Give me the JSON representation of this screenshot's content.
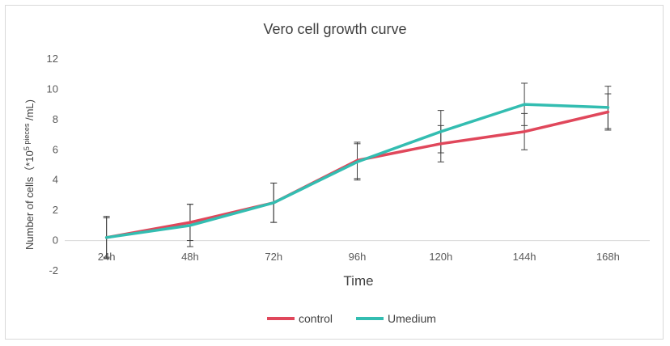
{
  "chart_data": {
    "type": "line",
    "title": "Vero cell growth curve",
    "xlabel": "Time",
    "ylabel_prefix": "Number of cells（*10",
    "ylabel_sup": "5",
    "ylabel_small": " pieces",
    "ylabel_suffix": " /mL)",
    "categories": [
      "24h",
      "48h",
      "72h",
      "96h",
      "120h",
      "144h",
      "168h"
    ],
    "yticks": [
      "-2",
      "0",
      "2",
      "4",
      "6",
      "8",
      "10",
      "12"
    ],
    "ylim": [
      -2,
      12
    ],
    "grid": false,
    "legend_position": "bottom",
    "series": [
      {
        "name": "control",
        "color": "#e0475b",
        "values": [
          0.2,
          1.2,
          2.5,
          5.3,
          6.4,
          7.2,
          8.5
        ],
        "error": [
          1.3,
          1.2,
          1.3,
          1.2,
          1.2,
          1.2,
          1.2
        ]
      },
      {
        "name": "Umedium",
        "color": "#33bdb1",
        "values": [
          0.2,
          1.0,
          2.5,
          5.2,
          7.2,
          9.0,
          8.8
        ],
        "error": [
          1.4,
          1.4,
          1.3,
          1.2,
          1.4,
          1.4,
          1.4
        ]
      }
    ]
  }
}
